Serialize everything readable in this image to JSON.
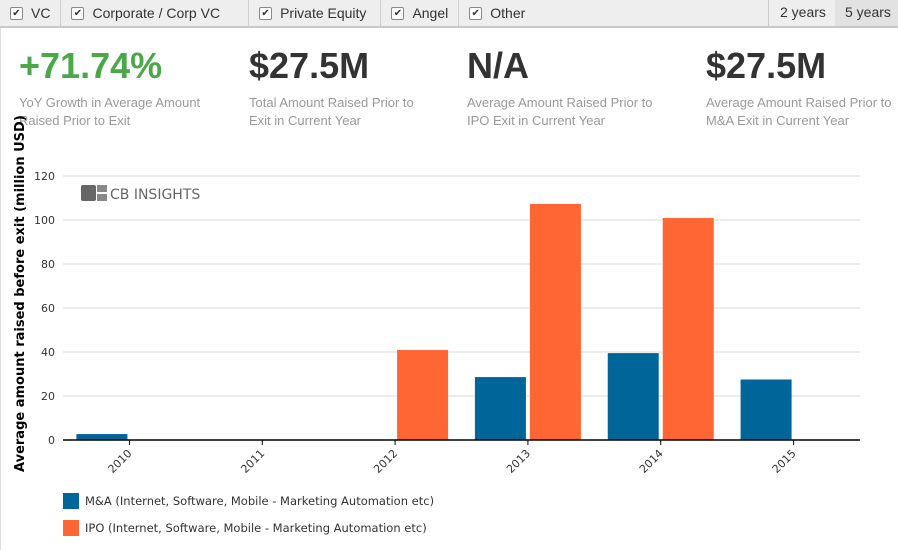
{
  "filters": [
    {
      "label": "VC",
      "checked": true
    },
    {
      "label": "Corporate / Corp VC",
      "checked": true
    },
    {
      "label": "Private Equity",
      "checked": true
    },
    {
      "label": "Angel",
      "checked": true
    },
    {
      "label": "Other",
      "checked": true
    }
  ],
  "ranges": [
    {
      "label": "2 years",
      "active": false
    },
    {
      "label": "5 years",
      "active": true
    }
  ],
  "stats": [
    {
      "value": "+71.74%",
      "label1": "YoY Growth in Average Amount",
      "label2": "Raised Prior to Exit",
      "color": "#4aa84a"
    },
    {
      "value": "$27.5M",
      "label1": "Total Amount Raised Prior to",
      "label2": "Exit in Current Year"
    },
    {
      "value": "N/A",
      "label1": "Average Amount Raised Prior to",
      "label2": "IPO Exit in Current Year"
    },
    {
      "value": "$27.5M",
      "label1": "Average Amount Raised Prior to",
      "label2": "M&A Exit in Current Year"
    }
  ],
  "logo": "CB INSIGHTS",
  "chart_data": {
    "type": "bar",
    "ylabel": "Average amount raised before exit (million USD)",
    "ylim": [
      0,
      120
    ],
    "yticks": [
      0,
      20,
      40,
      60,
      80,
      100,
      120
    ],
    "grid": true,
    "legend_position": "bottom-left",
    "categories": [
      "2010",
      "2011",
      "2012",
      "2013",
      "2014",
      "2015"
    ],
    "series": [
      {
        "name": "M&A (Internet, Software, Mobile - Marketing Automation etc)",
        "color": "#006699",
        "values": [
          2.7,
          0,
          0,
          28.6,
          39.5,
          27.5
        ]
      },
      {
        "name": "IPO (Internet, Software, Mobile - Marketing Automation etc)",
        "color": "#ff6633",
        "values": [
          0,
          0,
          40.9,
          107.3,
          100.9,
          0
        ]
      }
    ]
  }
}
